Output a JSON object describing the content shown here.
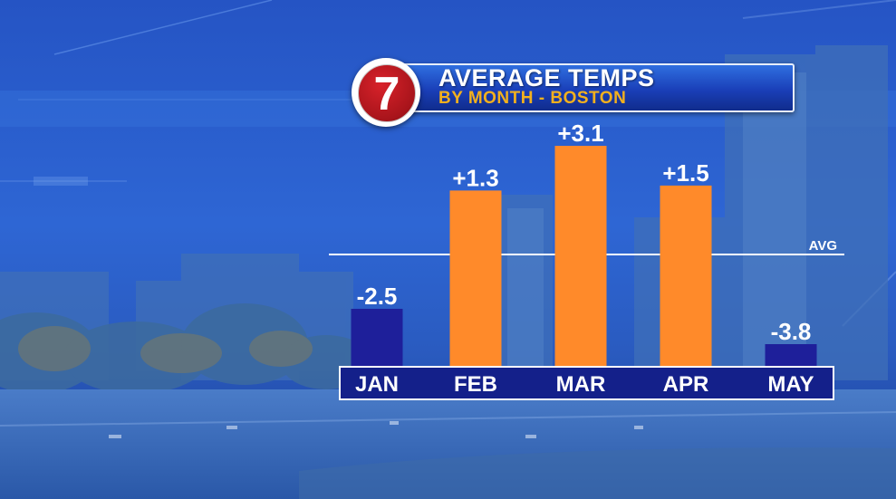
{
  "title": "AVERAGE TEMPS",
  "subtitle": "BY MONTH - BOSTON",
  "logo_text": "7",
  "colors": {
    "positive": "#ff8a2a",
    "negative": "#1e1f9a",
    "subtitle": "#f2b01e",
    "axis_band": "#14208a"
  },
  "chart_data": {
    "type": "bar",
    "title": "AVERAGE TEMPS",
    "subtitle": "BY MONTH - BOSTON",
    "categories": [
      "JAN",
      "FEB",
      "MAR",
      "APR",
      "MAY"
    ],
    "values": [
      -2.5,
      1.3,
      3.1,
      1.5,
      -3.8
    ],
    "labels": [
      "-2.5",
      "+1.3",
      "+3.1",
      "+1.5",
      "-3.8"
    ],
    "reference_line": {
      "label": "AVG"
    },
    "grid": false
  }
}
